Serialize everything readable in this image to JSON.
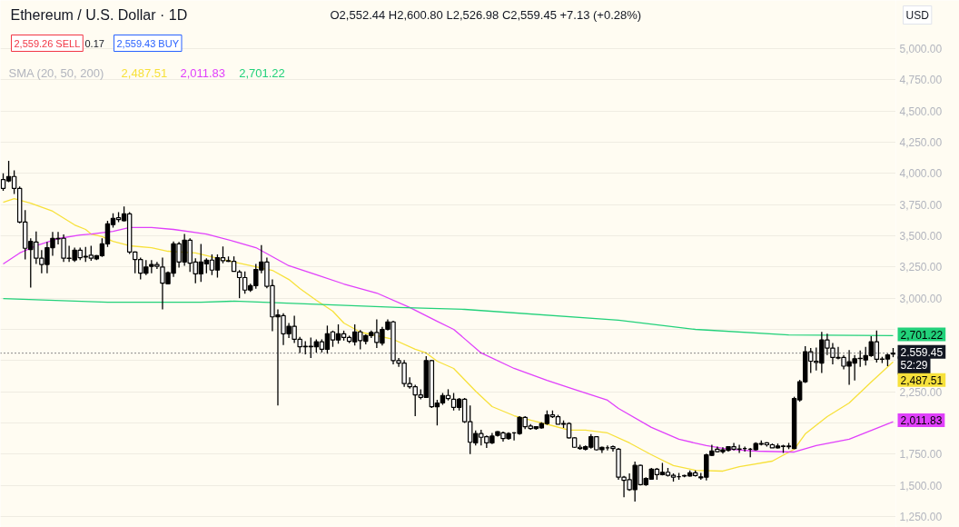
{
  "chart_data": {
    "type": "candlestick",
    "title": "Ethereum / U.S. Dollar · 1D",
    "subtitle": "O2,552.44 H2,600.80 L2,526.98 C2,559.45 +7.13 (+0.28%)",
    "color": "#000000",
    "categories": [
      null,
      null,
      null,
      null,
      null,
      null,
      null,
      null,
      null,
      null,
      null,
      null,
      null,
      null,
      null,
      null,
      null,
      null,
      null,
      null,
      null,
      null,
      null,
      null,
      null,
      null,
      null,
      null,
      null,
      null,
      null,
      null,
      null,
      null,
      null,
      null,
      null,
      null,
      null,
      null,
      null,
      null,
      null,
      null,
      null,
      null,
      null,
      null,
      null,
      null,
      null,
      null,
      null,
      null,
      null,
      null,
      null,
      null,
      null,
      null,
      null,
      null,
      null,
      null,
      null,
      null,
      null,
      null,
      null,
      null,
      null,
      null,
      null,
      null,
      null,
      null,
      null,
      null,
      null,
      null,
      null,
      null,
      null,
      null,
      null,
      null,
      null,
      null,
      null,
      null,
      null,
      null,
      null,
      null,
      null,
      null,
      null,
      null,
      null,
      null,
      null,
      null,
      null,
      null,
      null,
      null,
      null,
      null,
      null,
      null,
      null,
      null,
      null,
      null,
      null,
      null,
      null,
      null,
      null,
      null,
      null,
      null,
      null,
      null,
      null,
      null,
      null,
      null,
      null,
      null,
      null,
      null,
      null,
      null,
      null,
      null,
      null,
      null,
      null,
      null,
      null,
      null,
      null,
      null,
      null,
      null,
      null,
      null,
      null,
      null,
      null,
      null,
      null,
      null,
      null,
      null,
      null,
      null,
      null,
      null,
      null,
      null,
      null
    ],
    "ohlc": [
      [
        3950,
        4000,
        3860,
        3880
      ],
      [
        3940,
        4100,
        3930,
        3975
      ],
      [
        3975,
        4025,
        3835,
        3880
      ],
      [
        3880,
        3895,
        3600,
        3610
      ],
      [
        3610,
        3705,
        3310,
        3400
      ],
      [
        3390,
        3480,
        3085,
        3455
      ],
      [
        3450,
        3535,
        3275,
        3320
      ],
      [
        3320,
        3385,
        3200,
        3270
      ],
      [
        3270,
        3450,
        3200,
        3405
      ],
      [
        3405,
        3530,
        3340,
        3480
      ],
      [
        3480,
        3530,
        3430,
        3475
      ],
      [
        3480,
        3510,
        3290,
        3320
      ],
      [
        3320,
        3420,
        3290,
        3318
      ],
      [
        3305,
        3405,
        3290,
        3385
      ],
      [
        3385,
        3405,
        3305,
        3325
      ],
      [
        3330,
        3410,
        3290,
        3335
      ],
      [
        3345,
        3420,
        3300,
        3320
      ],
      [
        3315,
        3345,
        3305,
        3340
      ],
      [
        3340,
        3480,
        3330,
        3435
      ],
      [
        3435,
        3620,
        3410,
        3595
      ],
      [
        3590,
        3680,
        3565,
        3640
      ],
      [
        3645,
        3690,
        3610,
        3630
      ],
      [
        3620,
        3735,
        3615,
        3675
      ],
      [
        3675,
        3690,
        3355,
        3370
      ],
      [
        3370,
        3375,
        3200,
        3310
      ],
      [
        3310,
        3325,
        3150,
        3200
      ],
      [
        3200,
        3305,
        3185,
        3250
      ],
      [
        3255,
        3305,
        3200,
        3270
      ],
      [
        3270,
        3290,
        3235,
        3255
      ],
      [
        3250,
        3325,
        2910,
        3120
      ],
      [
        3115,
        3215,
        3110,
        3205
      ],
      [
        3200,
        3455,
        3170,
        3435
      ],
      [
        3435,
        3450,
        3245,
        3290
      ],
      [
        3290,
        3515,
        3260,
        3465
      ],
      [
        3465,
        3480,
        3210,
        3280
      ],
      [
        3290,
        3320,
        3120,
        3195
      ],
      [
        3195,
        3435,
        3130,
        3290
      ],
      [
        3275,
        3320,
        3200,
        3305
      ],
      [
        3305,
        3350,
        3185,
        3225
      ],
      [
        3225,
        3350,
        3165,
        3325
      ],
      [
        3325,
        3415,
        3280,
        3300
      ],
      [
        3300,
        3335,
        3290,
        3295
      ],
      [
        3295,
        3335,
        3215,
        3215
      ],
      [
        3210,
        3225,
        3000,
        3165
      ],
      [
        3165,
        3215,
        3035,
        3065
      ],
      [
        3065,
        3115,
        3050,
        3100
      ],
      [
        3100,
        3275,
        3075,
        3230
      ],
      [
        3225,
        3425,
        3200,
        3290
      ],
      [
        3290,
        3325,
        3080,
        3095
      ],
      [
        3100,
        3150,
        2735,
        2850
      ],
      [
        2850,
        2910,
        2140,
        2865
      ],
      [
        2860,
        2880,
        2625,
        2715
      ],
      [
        2715,
        2800,
        2680,
        2775
      ],
      [
        2775,
        2860,
        2640,
        2670
      ],
      [
        2670,
        2690,
        2560,
        2610
      ],
      [
        2615,
        2655,
        2550,
        2610
      ],
      [
        2610,
        2685,
        2520,
        2615
      ],
      [
        2610,
        2670,
        2565,
        2650
      ],
      [
        2650,
        2670,
        2565,
        2590
      ],
      [
        2590,
        2780,
        2555,
        2715
      ],
      [
        2730,
        2740,
        2610,
        2665
      ],
      [
        2665,
        2790,
        2635,
        2715
      ],
      [
        2715,
        2740,
        2660,
        2685
      ],
      [
        2685,
        2700,
        2640,
        2655
      ],
      [
        2650,
        2790,
        2620,
        2730
      ],
      [
        2730,
        2745,
        2590,
        2660
      ],
      [
        2655,
        2710,
        2630,
        2700
      ],
      [
        2700,
        2740,
        2680,
        2725
      ],
      [
        2725,
        2830,
        2600,
        2645
      ],
      [
        2640,
        2770,
        2620,
        2750
      ],
      [
        2750,
        2830,
        2740,
        2810
      ],
      [
        2810,
        2820,
        2470,
        2500
      ],
      [
        2500,
        2520,
        2450,
        2480
      ],
      [
        2480,
        2505,
        2290,
        2315
      ],
      [
        2315,
        2365,
        2275,
        2290
      ],
      [
        2290,
        2305,
        2055,
        2225
      ],
      [
        2225,
        2270,
        2190,
        2205
      ],
      [
        2205,
        2535,
        2200,
        2500
      ],
      [
        2500,
        2505,
        2120,
        2130
      ],
      [
        2130,
        2185,
        1980,
        2160
      ],
      [
        2160,
        2240,
        2145,
        2220
      ],
      [
        2220,
        2270,
        2180,
        2195
      ],
      [
        2190,
        2240,
        2100,
        2125
      ],
      [
        2125,
        2200,
        2100,
        2190
      ],
      [
        2190,
        2200,
        2000,
        2010
      ],
      [
        2010,
        2140,
        1750,
        1845
      ],
      [
        1840,
        1940,
        1820,
        1915
      ],
      [
        1915,
        1945,
        1820,
        1885
      ],
      [
        1890,
        1900,
        1800,
        1840
      ],
      [
        1840,
        1920,
        1830,
        1895
      ],
      [
        1900,
        1935,
        1890,
        1930
      ],
      [
        1920,
        1930,
        1850,
        1875
      ],
      [
        1875,
        1925,
        1865,
        1915
      ],
      [
        1920,
        1925,
        1860,
        1920
      ],
      [
        1915,
        2055,
        1905,
        2045
      ],
      [
        2045,
        2055,
        1950,
        1970
      ],
      [
        1975,
        1990,
        1945,
        1955
      ],
      [
        1955,
        1975,
        1945,
        1970
      ],
      [
        1960,
        2005,
        1955,
        1995
      ],
      [
        1995,
        2100,
        1985,
        2065
      ],
      [
        2065,
        2100,
        2040,
        2050
      ],
      [
        2050,
        2065,
        1990,
        1990
      ],
      [
        1990,
        2020,
        1960,
        1995
      ],
      [
        1995,
        2005,
        1875,
        1880
      ],
      [
        1880,
        1885,
        1800,
        1805
      ],
      [
        1805,
        1825,
        1785,
        1795
      ],
      [
        1790,
        1820,
        1780,
        1810
      ],
      [
        1805,
        1910,
        1795,
        1890
      ],
      [
        1890,
        1895,
        1780,
        1785
      ],
      [
        1785,
        1810,
        1760,
        1805
      ],
      [
        1800,
        1820,
        1780,
        1800
      ],
      [
        1810,
        1820,
        1770,
        1795
      ],
      [
        1790,
        1800,
        1545,
        1565
      ],
      [
        1565,
        1575,
        1405,
        1540
      ],
      [
        1545,
        1595,
        1455,
        1465
      ],
      [
        1465,
        1690,
        1370,
        1660
      ],
      [
        1660,
        1665,
        1500,
        1505
      ],
      [
        1505,
        1565,
        1495,
        1555
      ],
      [
        1550,
        1640,
        1545,
        1630
      ],
      [
        1630,
        1640,
        1545,
        1585
      ],
      [
        1585,
        1680,
        1580,
        1605
      ],
      [
        1605,
        1640,
        1570,
        1580
      ],
      [
        1580,
        1595,
        1530,
        1565
      ],
      [
        1570,
        1600,
        1545,
        1570
      ],
      [
        1575,
        1585,
        1565,
        1578
      ],
      [
        1575,
        1620,
        1570,
        1600
      ],
      [
        1600,
        1620,
        1570,
        1578
      ],
      [
        1560,
        1600,
        1545,
        1568
      ],
      [
        1565,
        1755,
        1540,
        1745
      ],
      [
        1740,
        1825,
        1735,
        1775
      ],
      [
        1790,
        1810,
        1765,
        1770
      ],
      [
        1770,
        1805,
        1755,
        1785
      ],
      [
        1780,
        1815,
        1770,
        1810
      ],
      [
        1810,
        1840,
        1780,
        1790
      ],
      [
        1790,
        1825,
        1760,
        1792
      ],
      [
        1795,
        1810,
        1770,
        1795
      ],
      [
        1790,
        1800,
        1725,
        1790
      ],
      [
        1785,
        1845,
        1780,
        1835
      ],
      [
        1830,
        1860,
        1820,
        1835
      ],
      [
        1840,
        1845,
        1810,
        1825
      ],
      [
        1825,
        1835,
        1800,
        1800
      ],
      [
        1800,
        1835,
        1795,
        1815
      ],
      [
        1815,
        1825,
        1760,
        1812
      ],
      [
        1810,
        1840,
        1790,
        1815
      ],
      [
        1795,
        2210,
        1790,
        2195
      ],
      [
        2185,
        2345,
        2170,
        2330
      ],
      [
        2330,
        2615,
        2320,
        2570
      ],
      [
        2570,
        2600,
        2400,
        2495
      ],
      [
        2495,
        2605,
        2420,
        2485
      ],
      [
        2480,
        2730,
        2400,
        2665
      ],
      [
        2665,
        2715,
        2545,
        2600
      ],
      [
        2600,
        2640,
        2470,
        2525
      ],
      [
        2525,
        2610,
        2510,
        2520
      ],
      [
        2525,
        2545,
        2430,
        2455
      ],
      [
        2455,
        2585,
        2305,
        2490
      ],
      [
        2480,
        2545,
        2340,
        2515
      ],
      [
        2515,
        2580,
        2450,
        2518
      ],
      [
        2505,
        2610,
        2460,
        2540
      ],
      [
        2540,
        2695,
        2530,
        2650
      ],
      [
        2650,
        2740,
        2485,
        2510
      ],
      [
        2510,
        2530,
        2480,
        2512
      ],
      [
        2512,
        2555,
        2455,
        2545
      ],
      [
        2552.44,
        2600.8,
        2526.98,
        2559.45
      ]
    ],
    "series": [
      {
        "type": "line",
        "color": "#f7e13b",
        "values": [
          3769,
          null,
          3798,
          null,
          null,
          3762,
          null,
          null,
          null,
          3697,
          null,
          null,
          null,
          3587,
          null,
          3551,
          3514,
          null,
          3493,
          null,
          3456,
          null,
          null,
          3420,
          null,
          null,
          null,
          3405,
          null,
          null,
          3376,
          null,
          null,
          null,
          null,
          3362,
          null,
          null,
          null,
          null,
          null,
          null,
          3289,
          null,
          null,
          null,
          3252,
          null,
          null,
          3223,
          null,
          null,
          3150,
          null,
          3077,
          null,
          null,
          2983,
          null,
          null,
          2896,
          null,
          2801,
          null,
          null,
          2728,
          null,
          null,
          2699,
          null,
          null,
          2670,
          null,
          null,
          null,
          2590,
          null,
          2561,
          null,
          2495,
          null,
          null,
          2437,
          null,
          null,
          null,
          2255,
          null,
          null,
          2131,
          null,
          null,
          null,
          2058,
          null,
          null,
          2022,
          null,
          null,
          null,
          1978,
          null,
          null,
          1942,
          null,
          null,
          1942,
          null,
          null,
          null,
          1920,
          null,
          null,
          null,
          1840,
          null,
          null,
          null,
          1745,
          null,
          null,
          null,
          1658,
          null,
          null,
          null,
          1621,
          null,
          null,
          null,
          null,
          1614,
          null,
          null,
          1650,
          null,
          null,
          null,
          null,
          null,
          1694,
          null,
          null,
          null,
          1790,
          null,
          1912,
          null,
          null,
          null,
          2051,
          null,
          null,
          null,
          2160,
          null,
          null,
          null,
          2328,
          null,
          null,
          null,
          2490
        ]
      },
      {
        "type": "line",
        "color": "#e040fb",
        "values": [
          3274,
          null,
          null,
          3362,
          null,
          null,
          3420,
          null,
          null,
          null,
          3478,
          null,
          null,
          null,
          3507,
          null,
          3514,
          null,
          null,
          null,
          3536,
          null,
          null,
          3566,
          null,
          null,
          null,
          3566,
          null,
          null,
          null,
          3551,
          null,
          null,
          null,
          null,
          null,
          3514,
          null,
          null,
          null,
          null,
          3456,
          null,
          null,
          null,
          3405,
          null,
          null,
          null,
          null,
          null,
          3260,
          null,
          null,
          null,
          null,
          3187,
          null,
          null,
          null,
          null,
          3114,
          null,
          null,
          null,
          null,
          null,
          3041,
          null,
          null,
          null,
          null,
          null,
          2925,
          null,
          null,
          null,
          null,
          2815,
          null,
          null,
          2750,
          null,
          null,
          null,
          null,
          2561,
          null,
          null,
          null,
          null,
          null,
          2437,
          null,
          null,
          null,
          null,
          null,
          2342,
          null,
          null,
          null,
          null,
          2269,
          null,
          null,
          null,
          null,
          null,
          2182,
          null,
          2116,
          null,
          null,
          null,
          null,
          null,
          1964,
          null,
          null,
          null,
          null,
          1869,
          null,
          null,
          null,
          null,
          1818,
          null,
          null,
          null,
          1789,
          null,
          null,
          null,
          null,
          1774,
          null,
          null,
          null,
          null,
          null,
          null,
          1767,
          null,
          null,
          null,
          1818,
          null,
          null,
          null,
          null,
          null,
          1869,
          null,
          null,
          null,
          null,
          null,
          null,
          null,
          2010
        ]
      },
      {
        "type": "line",
        "color": "#22d17a",
        "values": [
          2997,
          null,
          null,
          null,
          null,
          null,
          null,
          null,
          null,
          null,
          null,
          null,
          null,
          null,
          null,
          null,
          null,
          null,
          null,
          2968,
          null,
          null,
          null,
          null,
          null,
          null,
          null,
          null,
          null,
          null,
          null,
          null,
          null,
          null,
          null,
          null,
          2968,
          null,
          null,
          null,
          null,
          null,
          2976,
          null,
          null,
          null,
          null,
          null,
          null,
          null,
          null,
          null,
          null,
          null,
          null,
          null,
          null,
          null,
          null,
          null,
          null,
          null,
          null,
          null,
          null,
          null,
          null,
          null,
          null,
          null,
          null,
          null,
          2925,
          null,
          null,
          null,
          null,
          null,
          null,
          null,
          null,
          null,
          null,
          null,
          2910,
          null,
          null,
          null,
          null,
          null,
          null,
          null,
          null,
          null,
          null,
          null,
          null,
          null,
          null,
          null,
          null,
          null,
          null,
          null,
          null,
          null,
          null,
          null,
          null,
          null,
          null,
          null,
          2823,
          null,
          null,
          null,
          null,
          null,
          null,
          null,
          null,
          null,
          null,
          null,
          null,
          null,
          2750,
          null,
          null,
          null,
          null,
          null,
          null,
          null,
          null,
          null,
          null,
          null,
          null,
          null,
          null,
          null,
          null,
          2705,
          null,
          null,
          null,
          null,
          null,
          null,
          null,
          null,
          null,
          null,
          null,
          null,
          null,
          null,
          null,
          null,
          null,
          null,
          2700
        ]
      }
    ],
    "ylim": [
      1177,
      5386
    ],
    "yticks": [
      {
        "value": 1250,
        "label": "1,250.00"
      },
      {
        "value": 1500,
        "label": "1,500.00"
      },
      {
        "value": 1750,
        "label": "1,750.00"
      },
      {
        "value": 2000,
        "label": null
      },
      {
        "value": 2250,
        "label": "2,250.00"
      },
      {
        "value": 2500,
        "label": null
      },
      {
        "value": 2750,
        "label": null
      },
      {
        "value": 3000,
        "label": "3,000.00"
      },
      {
        "value": 3250,
        "label": "3,250.00"
      },
      {
        "value": 3500,
        "label": "3,500.00"
      },
      {
        "value": 3750,
        "label": "3,750.00"
      },
      {
        "value": 4000,
        "label": "4,000.00"
      },
      {
        "value": 4250,
        "label": "4,250.00"
      },
      {
        "value": 4500,
        "label": "4,500.00"
      },
      {
        "value": 4750,
        "label": "4,750.00"
      },
      {
        "value": 5000,
        "label": "5,000.00"
      }
    ],
    "tick_labels": "y",
    "grid": "y",
    "ref_lines": [
      {
        "axis": "y",
        "value": 2559.45,
        "label": "2,559.45",
        "line_style": "dotted",
        "color": "#131722"
      }
    ],
    "annotations": [
      "2,559.26 SELL",
      "0.17",
      "2,559.43 BUY",
      "SMA (20, 50, 200)",
      "2,487.51",
      "2,011.83",
      "2,701.22",
      "USD",
      "2,701.22",
      "52:29",
      "2,487.51",
      "2,011.83"
    ]
  }
}
